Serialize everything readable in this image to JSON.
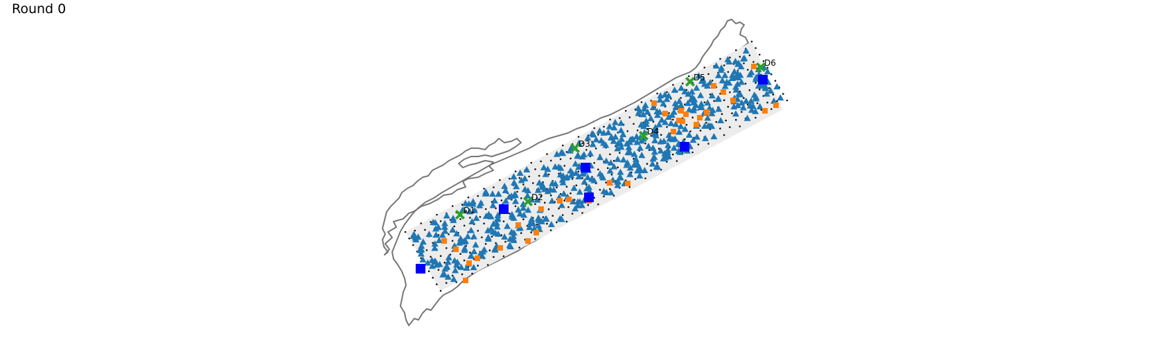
{
  "title": "Round 0",
  "colors": {
    "coastline": "#777777",
    "region_fill": "#ececec",
    "grid_dot": "#111111",
    "triangle": "#1f77b4",
    "orange_square": "#ff7f0e",
    "blue_square": "#0000ff",
    "green_x": "#2ca02c"
  },
  "markers": {
    "triangles": "filled-triangle",
    "small_squares": "filled-square",
    "large_squares": "filled-square",
    "depots": "x-marker"
  },
  "depots": [
    {
      "label": "D1"
    },
    {
      "label": "D2"
    },
    {
      "label": "D3"
    },
    {
      "label": "D4"
    },
    {
      "label": "D5"
    },
    {
      "label": "D6"
    }
  ]
}
